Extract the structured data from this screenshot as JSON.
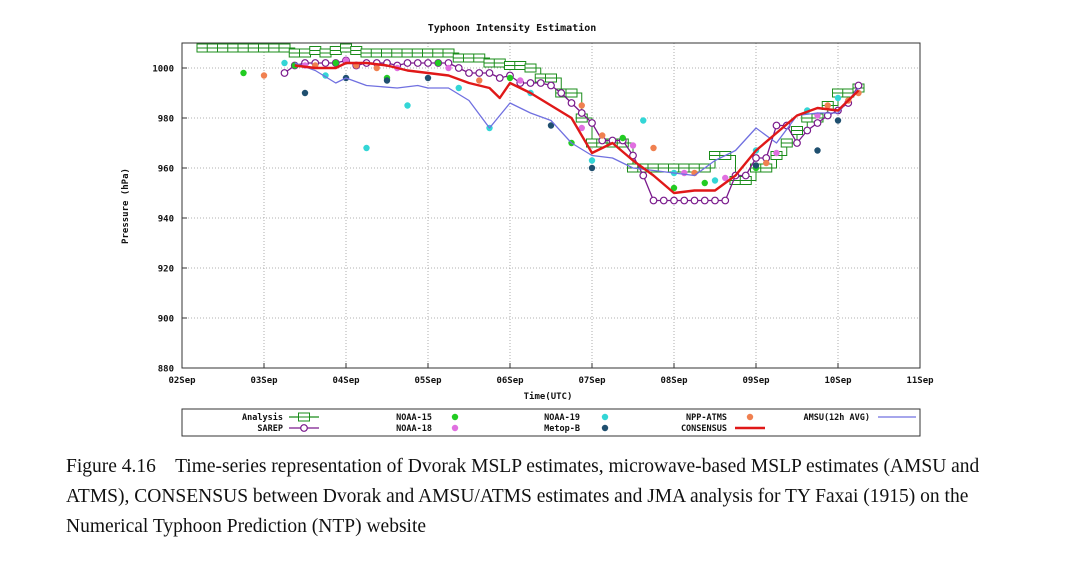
{
  "chart_data": {
    "type": "line",
    "title": "Typhoon Intensity Estimation",
    "xlabel": "Time(UTC)",
    "ylabel": "Pressure (hPa)",
    "ylim": [
      880,
      1010
    ],
    "xlim": [
      0,
      9
    ],
    "x_tick_labels": [
      "02Sep",
      "03Sep",
      "04Sep",
      "05Sep",
      "06Sep",
      "07Sep",
      "08Sep",
      "09Sep",
      "10Sep",
      "11Sep"
    ],
    "y_ticks": [
      880,
      900,
      920,
      940,
      960,
      980,
      1000
    ],
    "y_tick_labels": [
      "880",
      "900",
      "920",
      "940",
      "960",
      "980",
      "1000"
    ],
    "grid": true,
    "legend_position": "bottom",
    "series": [
      {
        "name": "Analysis",
        "color": "#1a8c1a",
        "style": "step-square",
        "x": [
          0.25,
          0.375,
          0.5,
          0.625,
          0.75,
          0.875,
          1.0,
          1.125,
          1.25,
          1.375,
          1.5,
          1.625,
          1.75,
          1.875,
          2.0,
          2.125,
          2.25,
          2.375,
          2.5,
          2.625,
          2.75,
          2.875,
          3.0,
          3.125,
          3.25,
          3.375,
          3.5,
          3.625,
          3.75,
          3.875,
          4.0,
          4.125,
          4.25,
          4.375,
          4.5,
          4.625,
          4.75,
          4.875,
          5.0,
          5.125,
          5.25,
          5.375,
          5.5,
          5.625,
          5.75,
          5.875,
          6.0,
          6.125,
          6.25,
          6.375,
          6.5,
          6.625,
          6.75,
          6.875,
          7.0,
          7.125,
          7.25,
          7.375,
          7.5,
          7.625,
          7.75,
          7.875,
          8.0,
          8.125,
          8.25
        ],
        "values": [
          1008,
          1008,
          1008,
          1008,
          1008,
          1008,
          1008,
          1008,
          1008,
          1006,
          1006,
          1007,
          1006,
          1007,
          1008,
          1007,
          1006,
          1006,
          1006,
          1006,
          1006,
          1006,
          1006,
          1006,
          1006,
          1004,
          1004,
          1004,
          1002,
          1002,
          1001,
          1001,
          1000,
          996,
          996,
          990,
          990,
          980,
          970,
          970,
          970,
          970,
          960,
          960,
          960,
          960,
          960,
          960,
          960,
          960,
          965,
          965,
          955,
          955,
          960,
          960,
          965,
          970,
          975,
          980,
          980,
          985,
          990,
          990,
          992
        ]
      },
      {
        "name": "SAREP",
        "color": "#7a1a8c",
        "style": "line-circle",
        "x": [
          1.25,
          1.375,
          1.5,
          1.625,
          1.75,
          1.875,
          2.0,
          2.125,
          2.25,
          2.375,
          2.5,
          2.625,
          2.75,
          2.875,
          3.0,
          3.125,
          3.25,
          3.375,
          3.5,
          3.625,
          3.75,
          3.875,
          4.0,
          4.125,
          4.25,
          4.375,
          4.5,
          4.625,
          4.75,
          4.875,
          5.0,
          5.125,
          5.25,
          5.375,
          5.5,
          5.625,
          5.75,
          5.875,
          6.0,
          6.125,
          6.25,
          6.375,
          6.5,
          6.625,
          6.75,
          6.875,
          7.0,
          7.125,
          7.25,
          7.375,
          7.5,
          7.625,
          7.75,
          7.875,
          8.0,
          8.125,
          8.25
        ],
        "values": [
          998,
          1001,
          1002,
          1002,
          1002,
          1002,
          1003,
          1001,
          1002,
          1002,
          1002,
          1001,
          1002,
          1002,
          1002,
          1002,
          1002,
          1000,
          998,
          998,
          998,
          996,
          997,
          994,
          994,
          994,
          993,
          990,
          986,
          982,
          978,
          971,
          971,
          971,
          965,
          957,
          947,
          947,
          947,
          947,
          947,
          947,
          947,
          947,
          957,
          957,
          964,
          964,
          977,
          977,
          970,
          975,
          978,
          981,
          983,
          986,
          993
        ]
      },
      {
        "name": "NOAA-15",
        "color": "#22cc22",
        "style": "dot",
        "x": [
          0.75,
          1.375,
          1.875,
          2.5,
          3.125,
          4.0,
          4.75,
          5.375,
          6.0,
          6.375,
          7.0
        ],
        "values": [
          998,
          1001,
          1002,
          996,
          1002,
          996,
          970,
          972,
          952,
          954,
          960
        ]
      },
      {
        "name": "NOAA-18",
        "color": "#e070e0",
        "style": "dot",
        "x": [
          1.5,
          2.0,
          2.625,
          3.25,
          4.125,
          4.875,
          5.5,
          6.125,
          6.625,
          7.25,
          7.75
        ],
        "values": [
          1001,
          1003,
          1000,
          1000,
          995,
          976,
          969,
          958,
          956,
          966,
          981
        ]
      },
      {
        "name": "NOAA-19",
        "color": "#33d6d6",
        "style": "dot",
        "x": [
          1.25,
          1.75,
          2.25,
          2.75,
          3.375,
          3.75,
          4.25,
          5.0,
          5.625,
          6.0,
          6.5,
          7.0,
          7.625,
          8.0
        ],
        "values": [
          1002,
          997,
          968,
          985,
          992,
          976,
          990,
          963,
          979,
          958,
          955,
          967,
          983,
          988
        ]
      },
      {
        "name": "Metop-B",
        "color": "#1f4f6f",
        "style": "dot",
        "x": [
          1.5,
          2.0,
          2.5,
          3.0,
          4.5,
          5.0,
          7.0,
          7.75,
          8.0
        ],
        "values": [
          990,
          996,
          995,
          996,
          977,
          960,
          961,
          967,
          979
        ]
      },
      {
        "name": "NPP-ATMS",
        "color": "#f08050",
        "style": "dot",
        "x": [
          1.0,
          1.625,
          2.125,
          2.375,
          3.625,
          4.875,
          5.125,
          5.75,
          6.25,
          7.125,
          7.875,
          8.125,
          8.25
        ],
        "values": [
          997,
          1001,
          1001,
          1000,
          995,
          985,
          973,
          968,
          958,
          962,
          985,
          987,
          990
        ]
      },
      {
        "name": "AMSU(12h AVG)",
        "color": "#7070e0",
        "style": "line",
        "x": [
          1.375,
          1.625,
          1.875,
          2.0,
          2.25,
          2.625,
          2.875,
          3.0,
          3.25,
          3.5,
          3.75,
          4.0,
          4.25,
          4.5,
          4.75,
          5.0,
          5.25,
          5.5,
          5.75,
          6.0,
          6.25,
          6.5,
          6.75,
          7.0,
          7.25,
          7.5,
          7.75,
          8.0,
          8.25
        ],
        "values": [
          1002,
          999,
          994,
          996,
          993,
          992,
          993,
          992,
          992,
          987,
          976,
          986,
          982,
          979,
          970,
          965,
          964,
          960,
          959,
          958,
          957,
          963,
          967,
          976,
          970,
          981,
          982,
          982,
          992
        ]
      },
      {
        "name": "CONSENSUS",
        "color": "#e01818",
        "style": "line-thick",
        "x": [
          1.375,
          1.625,
          1.875,
          2.0,
          2.25,
          2.5,
          2.75,
          3.0,
          3.25,
          3.5,
          3.75,
          3.875,
          4.0,
          4.25,
          4.5,
          4.75,
          5.0,
          5.25,
          5.5,
          5.75,
          6.0,
          6.25,
          6.5,
          6.75,
          7.0,
          7.25,
          7.5,
          7.75,
          8.0,
          8.25
        ],
        "values": [
          1001,
          1000,
          1000,
          1002,
          1002,
          1001,
          999,
          998,
          997,
          994,
          992,
          988,
          994,
          990,
          985,
          980,
          966,
          970,
          963,
          957,
          950,
          951,
          951,
          957,
          967,
          974,
          981,
          984,
          983,
          991
        ]
      }
    ],
    "legend_rows": [
      [
        "Analysis",
        "NOAA-15",
        "NOAA-19",
        "NPP-ATMS",
        "AMSU(12h AVG)"
      ],
      [
        "SAREP",
        "NOAA-18",
        "Metop-B",
        "CONSENSUS"
      ]
    ]
  },
  "caption": {
    "figure_label": "Figure 4.16",
    "text": "Time-series representation of Dvorak MSLP estimates, microwave-based MSLP estimates (AMSU and ATMS), CONSENSUS between Dvorak and AMSU/ATMS estimates and JMA analysis for TY Faxai (1915) on the Numerical Typhoon Prediction (NTP) website"
  }
}
